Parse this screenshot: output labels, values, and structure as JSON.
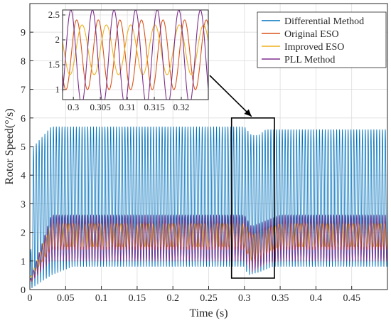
{
  "chart_data": {
    "type": "line",
    "xlabel": "Time (s)",
    "ylabel": "Rotor Speed(°/s)",
    "xlim": [
      0,
      0.5
    ],
    "ylim": [
      0,
      10
    ],
    "x_ticks": [
      "0",
      "0.05",
      "0.1",
      "0.15",
      "0.2",
      "0.25",
      "0.3",
      "0.35",
      "0.4",
      "0.45"
    ],
    "y_ticks": [
      "0",
      "1",
      "2",
      "3",
      "4",
      "5",
      "6",
      "7",
      "8",
      "9"
    ],
    "grid": true,
    "legend_position": "top-right",
    "series": [
      {
        "name": "Differential Method",
        "color": "#0072BD",
        "oscillation_period_s": 0.004,
        "envelope_min": [
          [
            0.0,
            0.0
          ],
          [
            0.03,
            0.5
          ],
          [
            0.06,
            0.8
          ],
          [
            0.3,
            0.8
          ],
          [
            0.305,
            0.5
          ],
          [
            0.32,
            0.6
          ],
          [
            0.34,
            0.8
          ],
          [
            0.5,
            0.8
          ]
        ],
        "envelope_max": [
          [
            0.0,
            0.2
          ],
          [
            0.005,
            5.0
          ],
          [
            0.03,
            5.7
          ],
          [
            0.3,
            5.7
          ],
          [
            0.31,
            5.4
          ],
          [
            0.32,
            5.4
          ],
          [
            0.33,
            5.6
          ],
          [
            0.5,
            5.6
          ]
        ]
      },
      {
        "name": "Original ESO",
        "color": "#D95319",
        "oscillation_period_s": 0.004,
        "envelope_min": [
          [
            0.0,
            0.2
          ],
          [
            0.03,
            1.4
          ],
          [
            0.3,
            1.4
          ],
          [
            0.31,
            0.8
          ],
          [
            0.33,
            1.2
          ],
          [
            0.35,
            1.4
          ],
          [
            0.5,
            1.4
          ]
        ],
        "envelope_max": [
          [
            0.0,
            0.3
          ],
          [
            0.03,
            2.4
          ],
          [
            0.3,
            2.4
          ],
          [
            0.31,
            2.0
          ],
          [
            0.33,
            2.2
          ],
          [
            0.35,
            2.4
          ],
          [
            0.5,
            2.4
          ]
        ]
      },
      {
        "name": "Improved ESO",
        "color": "#EDB120",
        "oscillation_period_s": 0.0045,
        "envelope_min": [
          [
            0.0,
            0.3
          ],
          [
            0.03,
            1.5
          ],
          [
            0.3,
            1.5
          ],
          [
            0.31,
            1.0
          ],
          [
            0.33,
            1.3
          ],
          [
            0.35,
            1.5
          ],
          [
            0.5,
            1.5
          ]
        ],
        "envelope_max": [
          [
            0.0,
            0.4
          ],
          [
            0.03,
            2.3
          ],
          [
            0.3,
            2.3
          ],
          [
            0.31,
            1.9
          ],
          [
            0.33,
            2.1
          ],
          [
            0.35,
            2.3
          ],
          [
            0.5,
            2.3
          ]
        ]
      },
      {
        "name": "PLL Method",
        "color": "#7E2F8E",
        "oscillation_period_s": 0.004,
        "envelope_min": [
          [
            0.0,
            0.2
          ],
          [
            0.03,
            1.0
          ],
          [
            0.3,
            1.0
          ],
          [
            0.31,
            0.6
          ],
          [
            0.33,
            0.9
          ],
          [
            0.35,
            1.0
          ],
          [
            0.5,
            1.0
          ]
        ],
        "envelope_max": [
          [
            0.0,
            0.3
          ],
          [
            0.03,
            2.6
          ],
          [
            0.3,
            2.6
          ],
          [
            0.31,
            2.2
          ],
          [
            0.33,
            2.4
          ],
          [
            0.35,
            2.6
          ],
          [
            0.5,
            2.6
          ]
        ]
      }
    ],
    "zoom_region": {
      "x": [
        0.282,
        0.342
      ],
      "y": [
        0.4,
        6.0
      ]
    },
    "inset": {
      "xlim": [
        0.298,
        0.325
      ],
      "ylim": [
        0.8,
        2.6
      ],
      "x_ticks": [
        "0.3",
        "0.305",
        "0.31",
        "0.315",
        "0.32"
      ],
      "y_ticks": [
        "1",
        "1.5",
        "2",
        "2.5"
      ]
    }
  }
}
